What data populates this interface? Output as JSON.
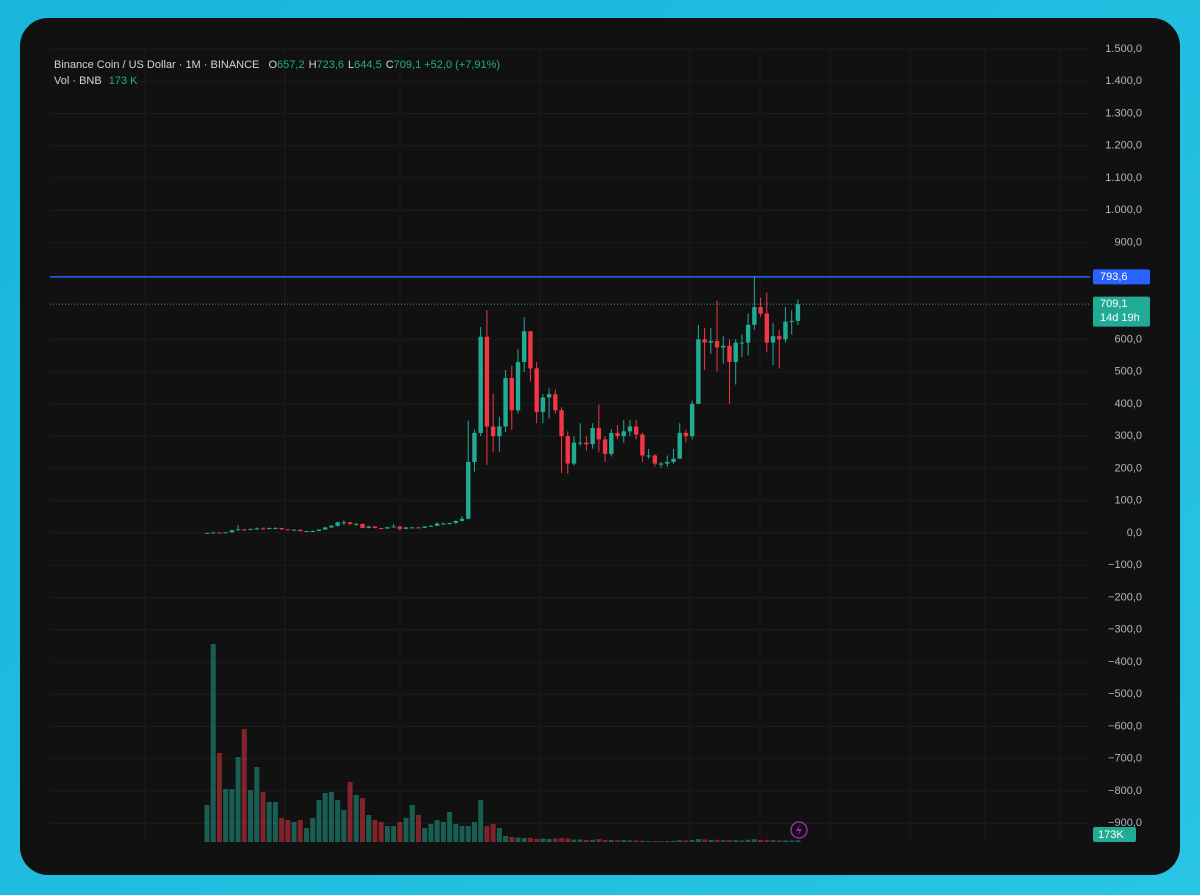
{
  "chart_data": {
    "type": "candlestick",
    "title": "Binance Coin / US Dollar · 1M · BINANCE",
    "ohlc": [
      {
        "key": "O",
        "value": "657,2"
      },
      {
        "key": "H",
        "value": "723,6"
      },
      {
        "key": "L",
        "value": "644,5"
      },
      {
        "key": "C",
        "value": "709,1"
      }
    ],
    "change": "+52,0 (+7,91%)",
    "vol_title": "Vol · BNB",
    "vol_value": "173 K",
    "up_color": "#22ab94",
    "down_color": "#f23645",
    "candles": [
      [
        0.1,
        0.4,
        0.1,
        0.3
      ],
      [
        0.3,
        2.1,
        0.3,
        1.5
      ],
      [
        1.5,
        1.8,
        1.2,
        1.3
      ],
      [
        1.3,
        2.0,
        1.2,
        1.8
      ],
      [
        1.8,
        9,
        1.7,
        8.6
      ],
      [
        8.6,
        25,
        8,
        11
      ],
      [
        11,
        13,
        6.5,
        9.6
      ],
      [
        9.6,
        13,
        8,
        12.6
      ],
      [
        12.6,
        17,
        10,
        14
      ],
      [
        14,
        17,
        12,
        13
      ],
      [
        13,
        17,
        12,
        15
      ],
      [
        15,
        18,
        13,
        15
      ],
      [
        15,
        15.5,
        9,
        11
      ],
      [
        11,
        11.5,
        9,
        10
      ],
      [
        10,
        11,
        9,
        10
      ],
      [
        10,
        10.2,
        4.5,
        5.5
      ],
      [
        5.5,
        6.5,
        4.2,
        6
      ],
      [
        6,
        7.5,
        5,
        6.1
      ],
      [
        6.1,
        11,
        6,
        10.4
      ],
      [
        10.4,
        18,
        10,
        17
      ],
      [
        17,
        25,
        16,
        22
      ],
      [
        22,
        35,
        20,
        33
      ],
      [
        33,
        39,
        25,
        33
      ],
      [
        33,
        34,
        24,
        28
      ],
      [
        28,
        31,
        23,
        28
      ],
      [
        28,
        29,
        14.5,
        15.6
      ],
      [
        15.6,
        22,
        14,
        20
      ],
      [
        20,
        21,
        14.5,
        15.3
      ],
      [
        15.3,
        16,
        12,
        13.7
      ],
      [
        13.7,
        19,
        13,
        17.8
      ],
      [
        17.8,
        28,
        17,
        20
      ],
      [
        20,
        21,
        6.5,
        12.6
      ],
      [
        12.6,
        18,
        12,
        17
      ],
      [
        17,
        18.5,
        15,
        17
      ],
      [
        17,
        18.5,
        15,
        15.6
      ],
      [
        15.6,
        21,
        15.2,
        20
      ],
      [
        20,
        24,
        20,
        22
      ],
      [
        22,
        33,
        21,
        29
      ],
      [
        29,
        32,
        26,
        29
      ],
      [
        29,
        31,
        25,
        31
      ],
      [
        31,
        39,
        27,
        37
      ],
      [
        37,
        52,
        36,
        44
      ],
      [
        44,
        348,
        42,
        220
      ],
      [
        220,
        320,
        190,
        310
      ],
      [
        310,
        638,
        300,
        608
      ],
      [
        608,
        691,
        211,
        330
      ],
      [
        330,
        432,
        250,
        300
      ],
      [
        300,
        360,
        251,
        330
      ],
      [
        330,
        505,
        313,
        480
      ],
      [
        480,
        518,
        319,
        380
      ],
      [
        380,
        569,
        370,
        530
      ],
      [
        530,
        669,
        499,
        625
      ],
      [
        625,
        626,
        470,
        510
      ],
      [
        510,
        530,
        340,
        375
      ],
      [
        375,
        430,
        340,
        420
      ],
      [
        420,
        448,
        355,
        430
      ],
      [
        430,
        445,
        370,
        380
      ],
      [
        380,
        390,
        186,
        300
      ],
      [
        300,
        315,
        183,
        215
      ],
      [
        215,
        300,
        208,
        280
      ],
      [
        280,
        340,
        270,
        280
      ],
      [
        280,
        300,
        255,
        275
      ],
      [
        275,
        340,
        261,
        325
      ],
      [
        325,
        398,
        250,
        290
      ],
      [
        290,
        300,
        220,
        245
      ],
      [
        245,
        322,
        237,
        310
      ],
      [
        310,
        334,
        290,
        300
      ],
      [
        300,
        350,
        280,
        315
      ],
      [
        315,
        350,
        300,
        330
      ],
      [
        330,
        350,
        290,
        305
      ],
      [
        305,
        311,
        220,
        240
      ],
      [
        240,
        260,
        230,
        240
      ],
      [
        240,
        245,
        205,
        215
      ],
      [
        215,
        220,
        202,
        215
      ],
      [
        215,
        240,
        205,
        220
      ],
      [
        220,
        260,
        215,
        230
      ],
      [
        230,
        340,
        230,
        310
      ],
      [
        310,
        320,
        280,
        300
      ],
      [
        300,
        410,
        290,
        400
      ],
      [
        400,
        645,
        400,
        600
      ],
      [
        600,
        636,
        505,
        590
      ],
      [
        590,
        635,
        555,
        595
      ],
      [
        595,
        720,
        500,
        575
      ],
      [
        575,
        610,
        525,
        580
      ],
      [
        580,
        600,
        400,
        530
      ],
      [
        530,
        600,
        460,
        590
      ],
      [
        590,
        615,
        545,
        590
      ],
      [
        590,
        680,
        550,
        645
      ],
      [
        645,
        793.6,
        630,
        700
      ],
      [
        700,
        730,
        670,
        680
      ],
      [
        680,
        745,
        560,
        590
      ],
      [
        590,
        650,
        520,
        610
      ],
      [
        610,
        630,
        510,
        600
      ],
      [
        600,
        700,
        590,
        655
      ],
      [
        655,
        690,
        615,
        657.2
      ],
      [
        657.2,
        723.6,
        644.5,
        709.1
      ]
    ],
    "volume": [
      3700,
      19800,
      8900,
      5300,
      5300,
      8500,
      11300,
      5200,
      7500,
      5000,
      4000,
      4000,
      2400,
      2200,
      2000,
      2200,
      1400,
      2400,
      4200,
      4900,
      5000,
      4200,
      3200,
      6000,
      4700,
      4400,
      2700,
      2200,
      2000,
      1600,
      1600,
      2000,
      2400,
      3700,
      2700,
      1400,
      1800,
      2200,
      2000,
      3000,
      1800,
      1600,
      1600,
      2000,
      4200,
      1600,
      1800,
      1400,
      600,
      500,
      450,
      400,
      400,
      300,
      350,
      300,
      350,
      400,
      350,
      250,
      250,
      200,
      220,
      300,
      200,
      200,
      180,
      200,
      160,
      150,
      120,
      100,
      100,
      90,
      100,
      120,
      180,
      160,
      200,
      300,
      250,
      200,
      220,
      180,
      220,
      180,
      160,
      220,
      280,
      200,
      220,
      180,
      170,
      160,
      150,
      173
    ],
    "volume_last_label": "173K",
    "vlim": [
      0,
      20000
    ],
    "ylim": [
      -958,
      1500
    ],
    "yticks": [
      {
        "value": -900,
        "label": "−900,0"
      },
      {
        "value": -800,
        "label": "−800,0"
      },
      {
        "value": -700,
        "label": "−700,0"
      },
      {
        "value": -600,
        "label": "−600,0"
      },
      {
        "value": -500,
        "label": "−500,0"
      },
      {
        "value": -400,
        "label": "−400,0"
      },
      {
        "value": -300,
        "label": "−300,0"
      },
      {
        "value": -200,
        "label": "−200,0"
      },
      {
        "value": -100,
        "label": "−100,0"
      },
      {
        "value": 0,
        "label": "0,0"
      },
      {
        "value": 100,
        "label": "100,0"
      },
      {
        "value": 200,
        "label": "200,0"
      },
      {
        "value": 300,
        "label": "300,0"
      },
      {
        "value": 400,
        "label": "400,0"
      },
      {
        "value": 500,
        "label": "500,0"
      },
      {
        "value": 600,
        "label": "600,0"
      },
      {
        "value": 900,
        "label": "900,0"
      },
      {
        "value": 1000,
        "label": "1.000,0"
      },
      {
        "value": 1100,
        "label": "1.100,0"
      },
      {
        "value": 1200,
        "label": "1.200,0"
      },
      {
        "value": 1300,
        "label": "1.300,0"
      },
      {
        "value": 1400,
        "label": "1.400,0"
      },
      {
        "value": 1500,
        "label": "1.500,0"
      }
    ],
    "price_lines": [
      {
        "value": 793.6,
        "label": "793,6",
        "color": "#2962ff",
        "style": "solid"
      },
      {
        "value": 709.1,
        "label": "709,1",
        "countdown": "14d 19h",
        "color": "#22ab94",
        "style": "dotted"
      }
    ]
  }
}
